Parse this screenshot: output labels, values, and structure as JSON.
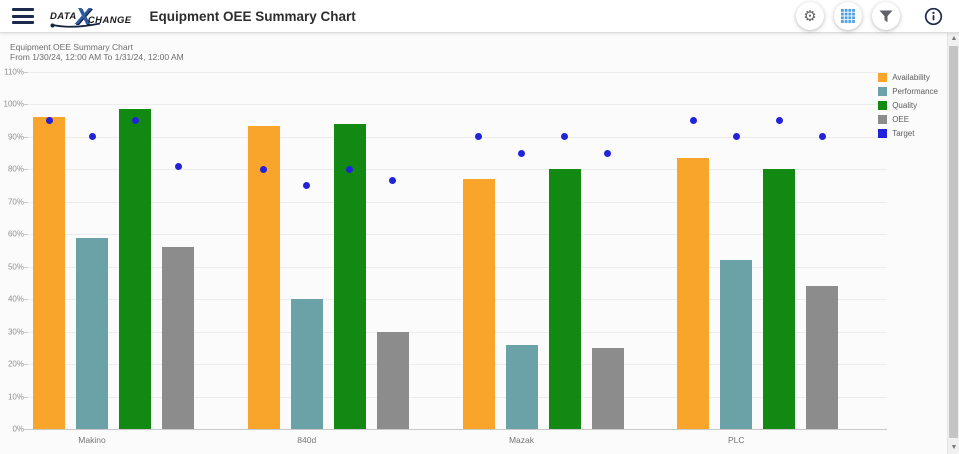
{
  "header": {
    "logo": {
      "part1": "DATA",
      "x": "X",
      "part2": "CHANGE"
    },
    "title": "Equipment OEE Summary Chart",
    "actions": {
      "settings_icon": "gear-icon",
      "table_icon": "grid-icon",
      "filter_icon": "funnel-icon",
      "info_icon": "info-icon"
    }
  },
  "chart": {
    "title": "Equipment OEE Summary Chart",
    "subtitle": "From 1/30/24, 12:00 AM To 1/31/24, 12:00 AM"
  },
  "chart_data": {
    "type": "bar",
    "title": "Equipment OEE Summary Chart",
    "subtitle": "From 1/30/24, 12:00 AM To 1/31/24, 12:00 AM",
    "categories": [
      "Makino",
      "840d",
      "Mazak",
      "PLC"
    ],
    "series": [
      {
        "name": "Availability",
        "color": "#F9A42B",
        "values": [
          96,
          93.5,
          77,
          83.5
        ]
      },
      {
        "name": "Performance",
        "color": "#6AA2A8",
        "values": [
          59,
          40,
          26,
          52
        ]
      },
      {
        "name": "Quality",
        "color": "#128912",
        "values": [
          98.5,
          94,
          80,
          80
        ]
      },
      {
        "name": "OEE",
        "color": "#8C8C8C",
        "values": [
          56,
          30,
          25,
          44
        ]
      }
    ],
    "target_series": {
      "name": "Target",
      "color": "#2222DB",
      "values_by_category": [
        [
          95,
          90,
          95,
          81
        ],
        [
          80,
          75,
          80,
          76.5
        ],
        [
          90,
          85,
          90,
          85
        ],
        [
          95,
          90,
          95,
          90
        ]
      ]
    },
    "ylim": [
      0,
      110
    ],
    "ytick_step": 10,
    "ytick_labels": [
      "0%",
      "10%",
      "20%",
      "30%",
      "40%",
      "50%",
      "60%",
      "70%",
      "80%",
      "90%",
      "100%",
      "110%"
    ],
    "grid": true,
    "legend_position": "top-right",
    "legend_entries": [
      "Availability",
      "Performance",
      "Quality",
      "OEE",
      "Target"
    ]
  },
  "colors": {
    "navy": "#1C2B4D",
    "grid_icon_blue": "#4C9EDE",
    "icon_gray": "#5F6368"
  }
}
